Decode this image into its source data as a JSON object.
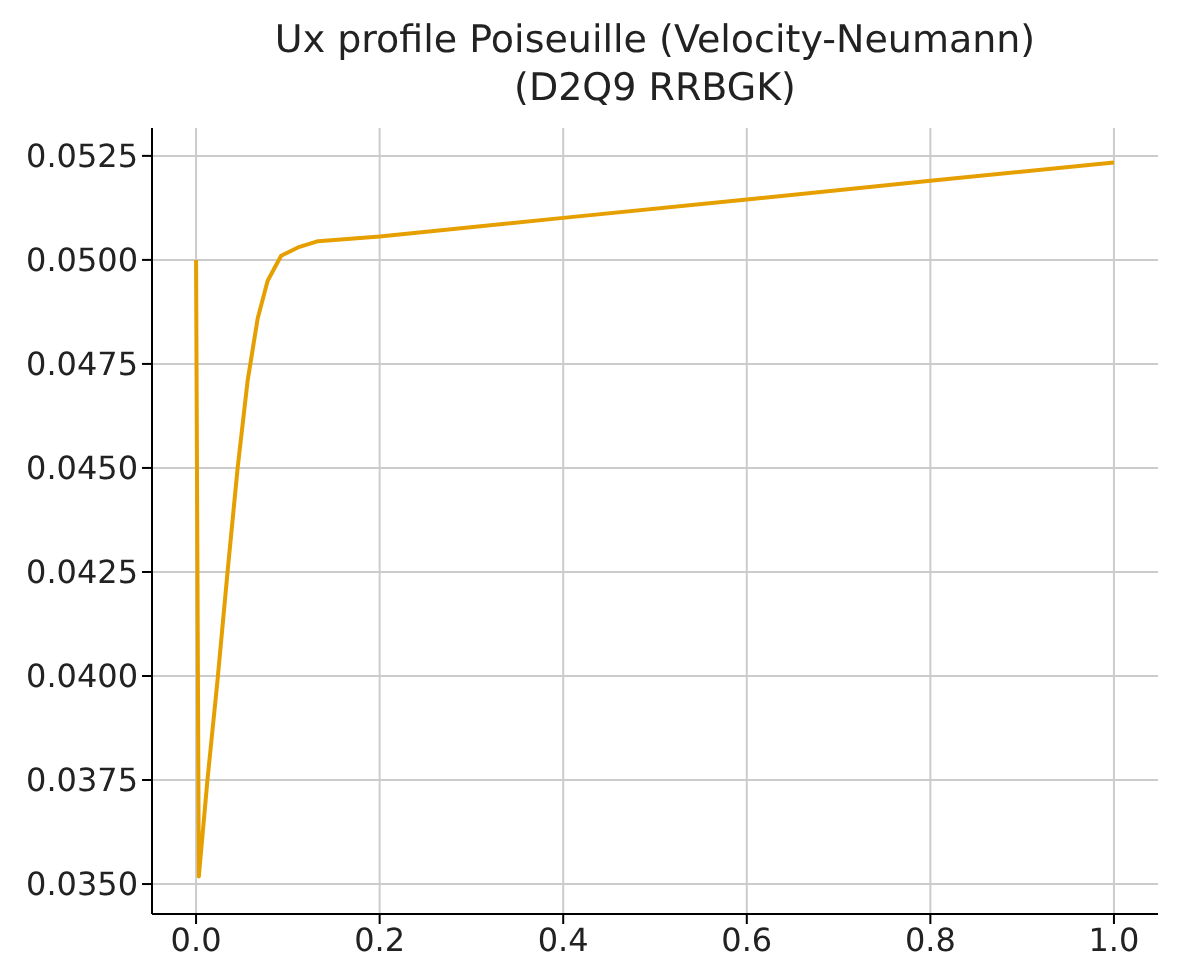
{
  "chart_data": {
    "type": "line",
    "title": "Ux profile Poiseuille (Velocity-Neumann)\n(D2Q9 RRBGK)",
    "x": [
      0,
      0.003,
      0.0124,
      0.0234,
      0.0343,
      0.0453,
      0.0562,
      0.0672,
      0.078,
      0.0927,
      0.111,
      0.133,
      0.2,
      0.4,
      0.6,
      0.8,
      1.0
    ],
    "series": [
      {
        "color": "#e69f00",
        "values": [
          0.05,
          0.03518,
          0.0375,
          0.0399,
          0.0425,
          0.045,
          0.0471,
          0.0486,
          0.0495,
          0.0501,
          0.0503,
          0.05045,
          0.05056,
          0.05101,
          0.05145,
          0.0519,
          0.05234
        ]
      }
    ],
    "xlim": [
      -0.048,
      1.048
    ],
    "ylim": [
      0.03428,
      0.05317
    ],
    "xticks": [
      {
        "value": 0,
        "label": "0.0"
      },
      {
        "value": 0.2,
        "label": "0.2"
      },
      {
        "value": 0.4,
        "label": "0.4"
      },
      {
        "value": 0.6,
        "label": "0.6"
      },
      {
        "value": 0.8,
        "label": "0.8"
      },
      {
        "value": 1,
        "label": "1.0"
      }
    ],
    "yticks": [
      {
        "value": 0.035,
        "label": "0.0350"
      },
      {
        "value": 0.0375,
        "label": "0.0375"
      },
      {
        "value": 0.04,
        "label": "0.0400"
      },
      {
        "value": 0.0425,
        "label": "0.0425"
      },
      {
        "value": 0.045,
        "label": "0.0450"
      },
      {
        "value": 0.0475,
        "label": "0.0475"
      },
      {
        "value": 0.05,
        "label": "0.0500"
      },
      {
        "value": 0.0525,
        "label": "0.0525"
      }
    ],
    "grid": true,
    "legend": false,
    "marker": "none",
    "line_style": "solid"
  }
}
